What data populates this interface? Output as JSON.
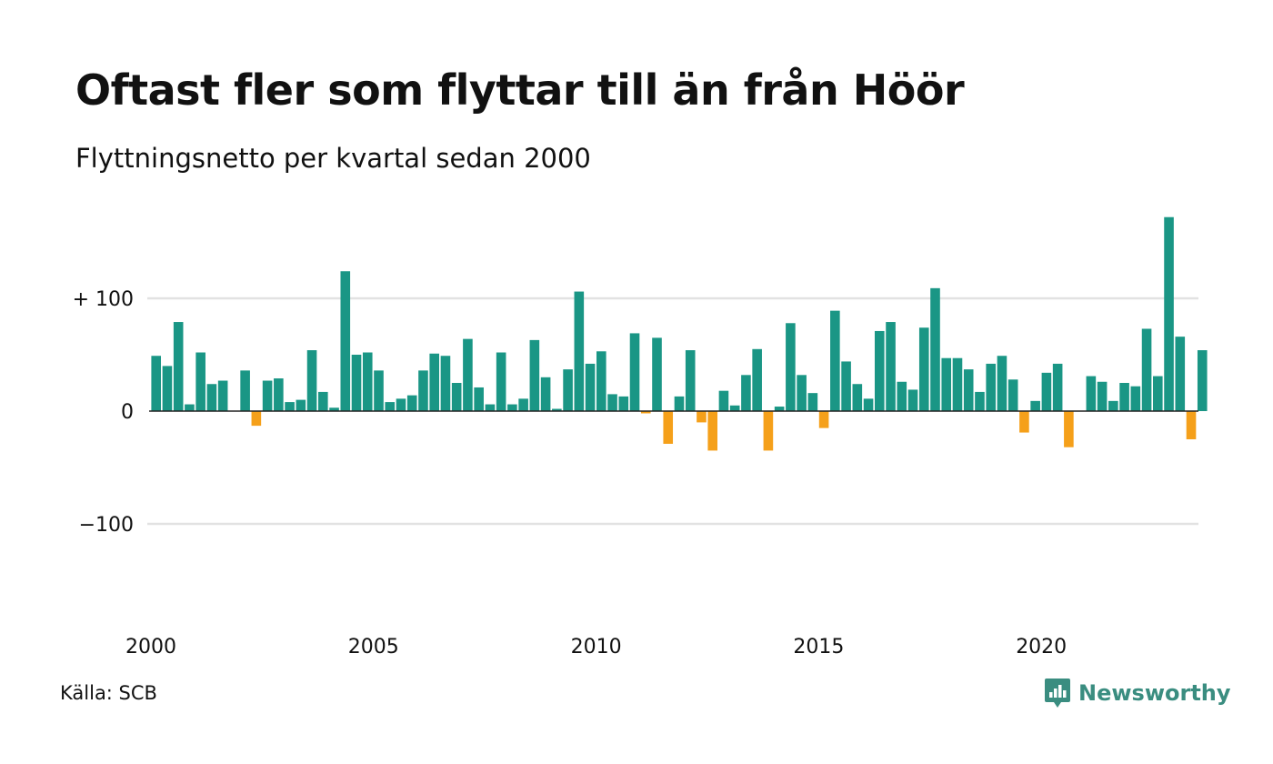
{
  "title": "Oftast fler som flyttar till än från Höör",
  "subtitle": "Flyttningsnetto per kvartal sedan 2000",
  "source": "Källa: SCB",
  "brand": "Newsworthy",
  "colors": {
    "positive": "#1a9685",
    "negative": "#f5a01a",
    "grid": "#e2e2e2",
    "brand": "#3a8d80"
  },
  "chart_data": {
    "type": "bar",
    "title": "Oftast fler som flyttar till än från Höör",
    "subtitle": "Flyttningsnetto per kvartal sedan 2000",
    "xlabel": "",
    "ylabel": "",
    "ylim": [
      -180,
      180
    ],
    "yticks": [
      {
        "value": 100,
        "label": "+ 100"
      },
      {
        "value": 0,
        "label": "0"
      },
      {
        "value": -100,
        "label": "−100"
      }
    ],
    "xticks": [
      {
        "value": 2000,
        "label": "2000"
      },
      {
        "value": 2005,
        "label": "2005"
      },
      {
        "value": 2010,
        "label": "2010"
      },
      {
        "value": 2015,
        "label": "2015"
      },
      {
        "value": 2020,
        "label": "2020"
      }
    ],
    "start_year": 2000,
    "values": [
      49,
      40,
      79,
      6,
      52,
      24,
      27,
      0,
      36,
      -13,
      27,
      29,
      8,
      10,
      54,
      17,
      3,
      124,
      50,
      52,
      36,
      8,
      11,
      14,
      36,
      51,
      49,
      25,
      64,
      21,
      6,
      52,
      6,
      11,
      63,
      30,
      2,
      37,
      106,
      42,
      53,
      15,
      13,
      69,
      -2,
      65,
      -29,
      13,
      54,
      -10,
      -35,
      18,
      5,
      32,
      55,
      -35,
      4,
      78,
      32,
      16,
      -15,
      89,
      44,
      24,
      11,
      71,
      79,
      26,
      19,
      74,
      109,
      47,
      47,
      37,
      17,
      42,
      49,
      28,
      -19,
      9,
      34,
      42,
      -32,
      0,
      31,
      26,
      9,
      25,
      22,
      73,
      31,
      172,
      66,
      -25,
      54
    ]
  }
}
